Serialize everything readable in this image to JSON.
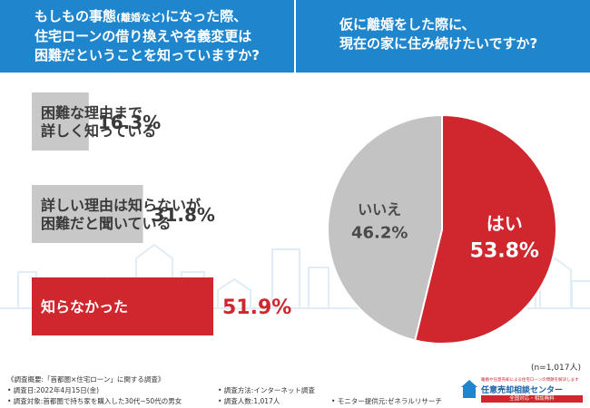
{
  "header_left": {
    "line1_prefix": "もしもの事態",
    "line1_small": "(離婚など)",
    "line1_suffix": "になった際、",
    "line2": "住宅ローンの借り換えや名義変更は",
    "line3": "困難だということを知っていますか?"
  },
  "header_right": {
    "line1": "仮に離婚をした際に、",
    "line2": "現在の家に住み続けたいですか?"
  },
  "colors": {
    "header": "#1f86cd",
    "gray_bar": "#c8c8c8",
    "red": "#d0262d",
    "pie_gray": "#c3c3c3"
  },
  "chart_data": [
    {
      "type": "bar",
      "title": "もしもの事態(離婚など)になった際、住宅ローンの借り換えや名義変更は困難だということを知っていますか?",
      "categories": [
        "困難な理由まで詳しく知っている",
        "詳しい理由は知らないが困難だと聞いている",
        "知らなかった"
      ],
      "category_lines": [
        [
          "困難な理由まで",
          "詳しく知っている"
        ],
        [
          "詳しい理由は知らないが",
          "困難だと聞いている"
        ],
        [
          "知らなかった"
        ]
      ],
      "values": [
        16.3,
        31.8,
        51.9
      ],
      "value_labels": [
        "16.3%",
        "31.8%",
        "51.9%"
      ],
      "unit": "%",
      "xlim": [
        0,
        51.9
      ]
    },
    {
      "type": "pie",
      "title": "仮に離婚をした際に、現在の家に住み続けたいですか?",
      "labels": [
        "はい",
        "いいえ"
      ],
      "values": [
        53.8,
        46.2
      ],
      "value_labels": [
        "53.8%",
        "46.2%"
      ],
      "colors": [
        "#d0262d",
        "#c3c3c3"
      ],
      "sample_note": "(n=1,017人)"
    }
  ],
  "footnotes": {
    "survey_title": "《調査概要:「首都圏×住宅ローン」に関する調査》",
    "date": "• 調査日:2022年4月15日(金)",
    "target": "• 調査対象:首都圏で持ち家を購入した30代~50代の男女",
    "method": "• 調査方法:インターネット調査",
    "count": "• 調査人数:1,017人",
    "monitor": "• モニター提供元:ゼネラルリサーチ"
  },
  "logo": {
    "small_text": "離婚や任意売却による住宅ローンの問題を解決します",
    "name": "任意売却相談センター",
    "banner": "全国対応・相談無料"
  }
}
